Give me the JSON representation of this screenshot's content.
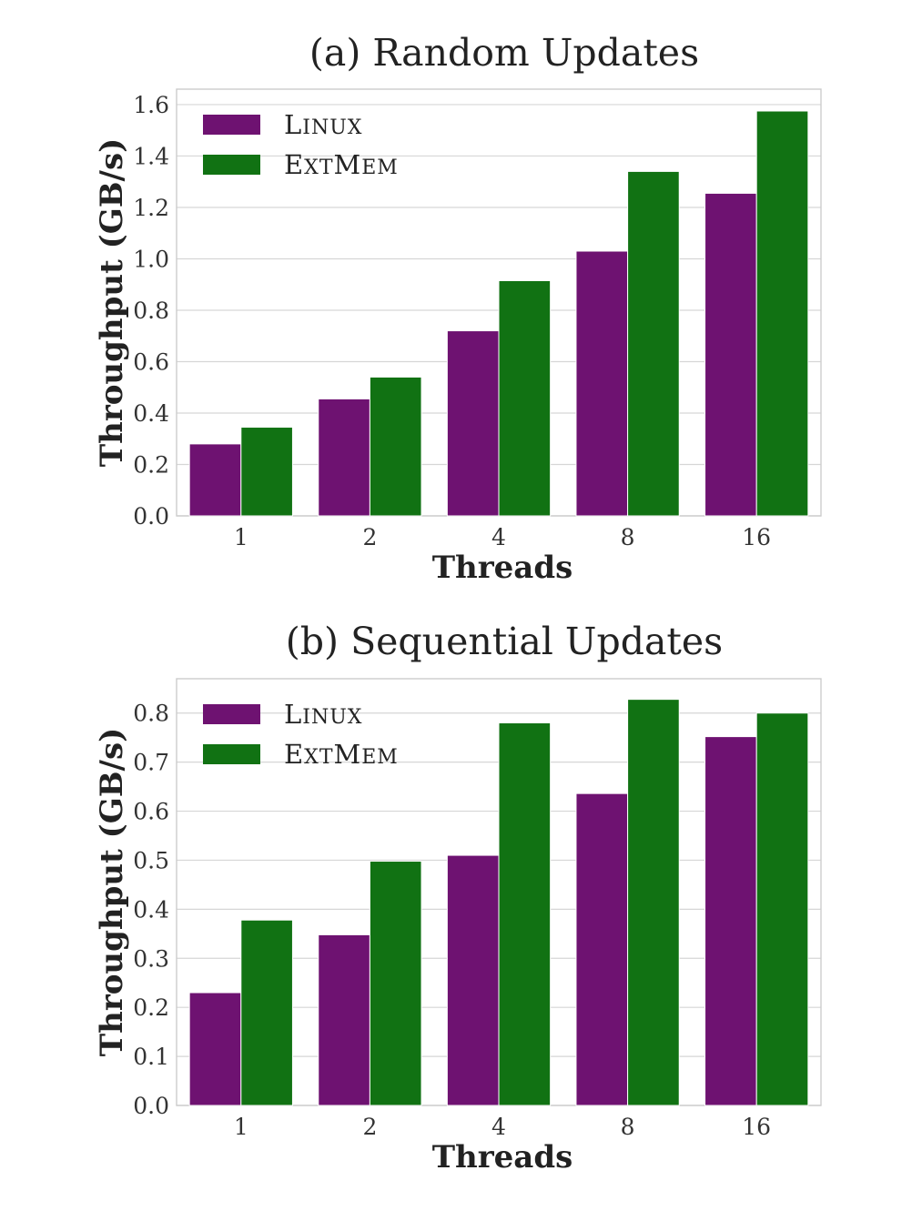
{
  "chart_data": [
    {
      "type": "bar",
      "title": "(a) Random Updates",
      "xlabel": "Threads",
      "ylabel": "Throughput (GB/s)",
      "categories": [
        "1",
        "2",
        "4",
        "8",
        "16"
      ],
      "ylim": [
        0,
        1.66
      ],
      "yticks": [
        "0.0",
        "0.2",
        "0.4",
        "0.6",
        "0.8",
        "1.0",
        "1.2",
        "1.4",
        "1.6"
      ],
      "grid": true,
      "legend_position": "top-left",
      "series": [
        {
          "name": "Linux",
          "color": "#6e1271",
          "values": [
            0.28,
            0.455,
            0.72,
            1.03,
            1.255
          ]
        },
        {
          "name": "ExtMem",
          "color": "#117213",
          "values": [
            0.345,
            0.54,
            0.915,
            1.34,
            1.575
          ]
        }
      ]
    },
    {
      "type": "bar",
      "title": "(b) Sequential Updates",
      "xlabel": "Threads",
      "ylabel": "Throughput (GB/s)",
      "categories": [
        "1",
        "2",
        "4",
        "8",
        "16"
      ],
      "ylim": [
        0,
        0.87
      ],
      "yticks": [
        "0.0",
        "0.1",
        "0.2",
        "0.3",
        "0.4",
        "0.5",
        "0.6",
        "0.7",
        "0.8"
      ],
      "grid": true,
      "legend_position": "top-left",
      "series": [
        {
          "name": "Linux",
          "color": "#6e1271",
          "values": [
            0.23,
            0.348,
            0.51,
            0.636,
            0.752
          ]
        },
        {
          "name": "ExtMem",
          "color": "#117213",
          "values": [
            0.378,
            0.498,
            0.78,
            0.828,
            0.8
          ]
        }
      ]
    }
  ]
}
